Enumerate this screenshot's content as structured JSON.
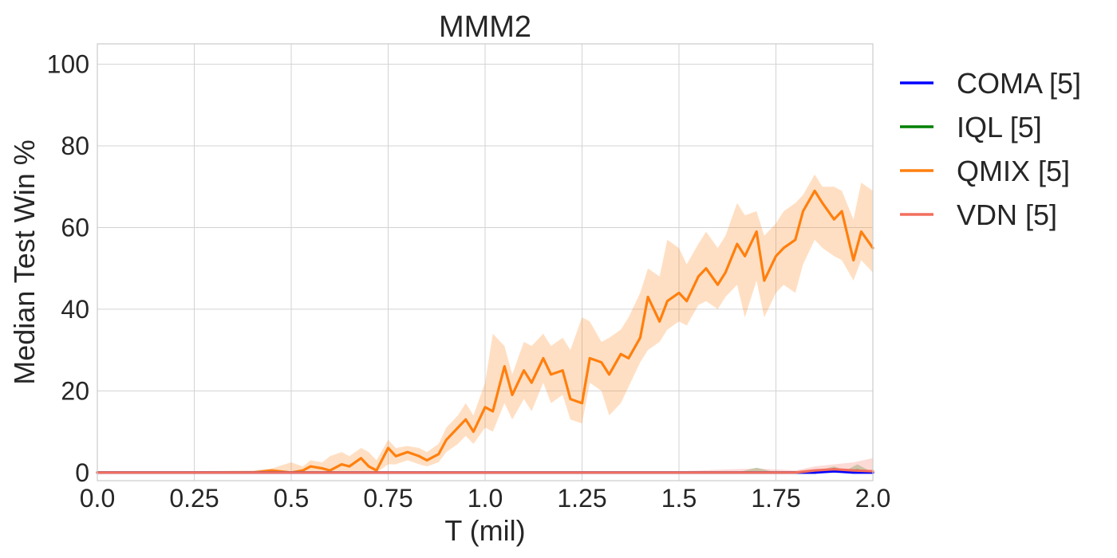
{
  "chart_data": {
    "type": "line",
    "title": "MMM2",
    "xlabel": "T (mil)",
    "ylabel": "Median Test Win %",
    "xlim": [
      0,
      2.0
    ],
    "ylim": [
      -2,
      105
    ],
    "xticks": [
      0.0,
      0.25,
      0.5,
      0.75,
      1.0,
      1.25,
      1.5,
      1.75,
      2.0
    ],
    "xtick_labels": [
      "0.0",
      "0.25",
      "0.5",
      "0.75",
      "1.0",
      "1.25",
      "1.5",
      "1.75",
      "2.0"
    ],
    "yticks": [
      0,
      20,
      40,
      60,
      80,
      100
    ],
    "ytick_labels": [
      "0",
      "20",
      "40",
      "60",
      "80",
      "100"
    ],
    "grid": true,
    "legend_position": "outside-right",
    "series": [
      {
        "name": "COMA [5]",
        "color": "#0000ff",
        "x": [
          0.0,
          0.5,
          1.0,
          1.5,
          1.85,
          1.9,
          1.95,
          2.0
        ],
        "y": [
          0,
          0,
          0,
          0,
          0,
          0.3,
          0,
          0
        ]
      },
      {
        "name": "IQL [5]",
        "color": "#008000",
        "x": [
          0.0,
          0.5,
          1.0,
          1.5,
          1.65,
          1.7,
          1.75,
          1.85,
          1.88,
          1.9,
          1.93,
          1.96,
          2.0
        ],
        "y": [
          0,
          0,
          0,
          0,
          0,
          0,
          0,
          0,
          0.4,
          0.8,
          0.2,
          0.5,
          0
        ],
        "band_lower": [
          0,
          0,
          0,
          0,
          0,
          0,
          0,
          0,
          0,
          0,
          0,
          0,
          0
        ],
        "band_upper": [
          0,
          0,
          0,
          0,
          0,
          1.2,
          0,
          0,
          1.0,
          1.5,
          0.5,
          2.0,
          0
        ]
      },
      {
        "name": "QMIX [5]",
        "color": "#ff7f0e",
        "x": [
          0.0,
          0.4,
          0.45,
          0.5,
          0.53,
          0.55,
          0.58,
          0.6,
          0.63,
          0.65,
          0.68,
          0.7,
          0.72,
          0.75,
          0.77,
          0.8,
          0.83,
          0.85,
          0.88,
          0.9,
          0.93,
          0.95,
          0.97,
          1.0,
          1.02,
          1.05,
          1.07,
          1.1,
          1.12,
          1.15,
          1.17,
          1.2,
          1.22,
          1.25,
          1.27,
          1.3,
          1.32,
          1.35,
          1.37,
          1.4,
          1.42,
          1.45,
          1.47,
          1.5,
          1.52,
          1.55,
          1.57,
          1.6,
          1.62,
          1.65,
          1.67,
          1.7,
          1.72,
          1.75,
          1.77,
          1.8,
          1.82,
          1.85,
          1.87,
          1.9,
          1.92,
          1.95,
          1.97,
          2.0
        ],
        "y": [
          0,
          0,
          0.5,
          0,
          0.5,
          1.5,
          1.0,
          0.5,
          2.0,
          1.5,
          3.5,
          1.5,
          0.5,
          6.0,
          4.0,
          5.0,
          4.0,
          3.0,
          4.5,
          8.0,
          11.0,
          13.0,
          10.0,
          16.0,
          15.0,
          26.0,
          19.0,
          25.0,
          22.0,
          28.0,
          24.0,
          25.0,
          18.0,
          17.0,
          28.0,
          27.0,
          24.0,
          29.0,
          28.0,
          33.0,
          43.0,
          37.0,
          42.0,
          44.0,
          42.0,
          48.0,
          50.0,
          46.0,
          49.0,
          56.0,
          53.0,
          59.0,
          47.0,
          53.0,
          55.0,
          57.0,
          64.0,
          69.0,
          66.0,
          62.0,
          64.0,
          52.0,
          59.0,
          55.0
        ],
        "band_lower": [
          0,
          0,
          0,
          0,
          0,
          0,
          0,
          0,
          0,
          0,
          0,
          0,
          0,
          2.0,
          2.0,
          3.0,
          2.0,
          1.5,
          2.5,
          5.0,
          7.0,
          9.0,
          7.0,
          11.0,
          10.0,
          17.0,
          13.0,
          18.0,
          15.0,
          22.0,
          17.0,
          19.0,
          13.0,
          12.0,
          22.0,
          20.0,
          14.0,
          17.0,
          21.0,
          27.0,
          30.0,
          32.0,
          35.0,
          37.0,
          36.0,
          41.0,
          42.0,
          40.0,
          43.0,
          46.0,
          38.0,
          47.0,
          38.0,
          44.0,
          46.0,
          44.0,
          51.0,
          57.0,
          55.0,
          53.0,
          52.0,
          47.0,
          52.0,
          49.0
        ],
        "band_upper": [
          0,
          0.5,
          1.0,
          2.5,
          1.5,
          3.0,
          2.5,
          4.0,
          5.0,
          4.0,
          6.0,
          5.0,
          3.0,
          8.0,
          6.0,
          6.5,
          6.0,
          5.0,
          7.0,
          11.0,
          14.0,
          17.0,
          14.0,
          22.0,
          34.0,
          31.0,
          24.0,
          32.0,
          31.0,
          34.0,
          31.0,
          33.0,
          30.0,
          38.0,
          37.0,
          32.0,
          33.0,
          35.0,
          38.0,
          44.0,
          50.0,
          48.0,
          57.0,
          55.0,
          51.0,
          56.0,
          59.0,
          55.0,
          58.0,
          66.0,
          63.0,
          64.0,
          58.0,
          61.0,
          64.0,
          66.0,
          68.0,
          73.0,
          70.0,
          70.0,
          69.0,
          62.0,
          71.0,
          69.0
        ]
      },
      {
        "name": "VDN [5]",
        "color": "#f26e5e",
        "x": [
          0.0,
          0.5,
          1.0,
          1.5,
          1.7,
          1.8,
          1.85,
          1.9,
          1.95,
          2.0
        ],
        "y": [
          0,
          0,
          0,
          0,
          0,
          0,
          0.5,
          0.8,
          0.5,
          0.3
        ],
        "band_lower": [
          0,
          0,
          0,
          0,
          0,
          0,
          0,
          0,
          0,
          0
        ],
        "band_upper": [
          0.3,
          0.3,
          0.3,
          0.3,
          1.0,
          0.5,
          1.5,
          2.0,
          2.5,
          3.5
        ]
      }
    ]
  }
}
